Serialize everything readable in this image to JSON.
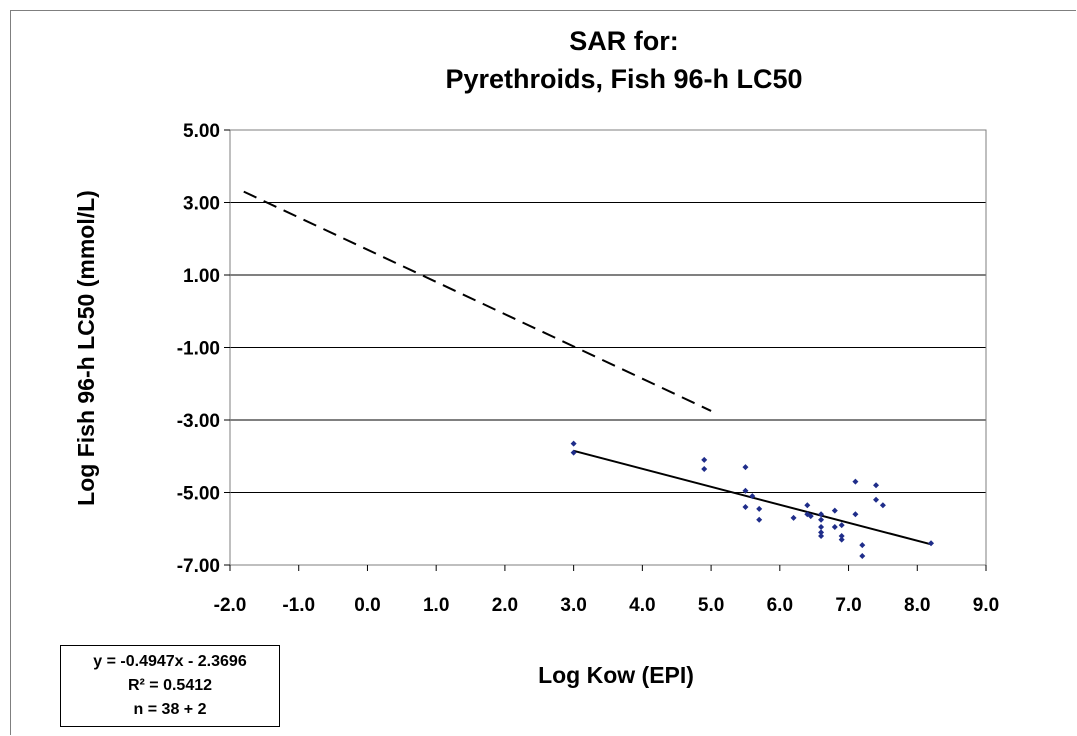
{
  "chart_data": {
    "type": "scatter",
    "title_lines": [
      "SAR for:",
      "Pyrethroids, Fish 96-h LC50"
    ],
    "xlabel": "Log Kow (EPI)",
    "ylabel": "Log Fish 96-h LC50 (mmol/L)",
    "xlim": [
      -2.0,
      9.0
    ],
    "ylim": [
      -7.0,
      5.0
    ],
    "x_ticks": [
      "-2.0",
      "-1.0",
      "0.0",
      "1.0",
      "2.0",
      "3.0",
      "4.0",
      "5.0",
      "6.0",
      "7.0",
      "8.0",
      "9.0"
    ],
    "x_tick_values": [
      -2,
      -1,
      0,
      1,
      2,
      3,
      4,
      5,
      6,
      7,
      8,
      9
    ],
    "y_ticks": [
      "5.00",
      "3.00",
      "1.00",
      "-1.00",
      "-3.00",
      "-5.00",
      "-7.00"
    ],
    "y_tick_values": [
      5,
      3,
      1,
      -1,
      -3,
      -5,
      -7
    ],
    "grid": "horizontal",
    "points_color": "#1f2d8a",
    "points": [
      [
        3.0,
        -3.65
      ],
      [
        3.0,
        -3.9
      ],
      [
        4.9,
        -4.1
      ],
      [
        4.9,
        -4.35
      ],
      [
        5.5,
        -4.3
      ],
      [
        5.5,
        -4.95
      ],
      [
        5.5,
        -5.4
      ],
      [
        5.6,
        -5.1
      ],
      [
        5.7,
        -5.45
      ],
      [
        5.7,
        -5.75
      ],
      [
        6.2,
        -5.7
      ],
      [
        6.4,
        -5.35
      ],
      [
        6.4,
        -5.6
      ],
      [
        6.45,
        -5.65
      ],
      [
        6.6,
        -5.6
      ],
      [
        6.6,
        -5.75
      ],
      [
        6.6,
        -5.95
      ],
      [
        6.6,
        -6.1
      ],
      [
        6.6,
        -6.2
      ],
      [
        6.8,
        -5.5
      ],
      [
        6.8,
        -5.95
      ],
      [
        6.9,
        -5.9
      ],
      [
        6.9,
        -6.2
      ],
      [
        6.9,
        -6.3
      ],
      [
        7.1,
        -4.7
      ],
      [
        7.1,
        -5.6
      ],
      [
        7.2,
        -6.45
      ],
      [
        7.2,
        -6.75
      ],
      [
        7.4,
        -4.8
      ],
      [
        7.4,
        -5.2
      ],
      [
        7.5,
        -5.35
      ],
      [
        8.2,
        -6.4
      ]
    ],
    "lines": [
      {
        "style": "solid",
        "x1": 3.0,
        "y1": -3.85,
        "x2": 8.2,
        "y2": -6.43
      },
      {
        "style": "dashed",
        "x1": -1.8,
        "y1": 3.3,
        "x2": 5.0,
        "y2": -2.75
      }
    ]
  },
  "equation_box": {
    "equation": "y = -0.4947x - 2.3696",
    "r_squared": "R² = 0.5412",
    "n": "n = 38 + 2"
  }
}
